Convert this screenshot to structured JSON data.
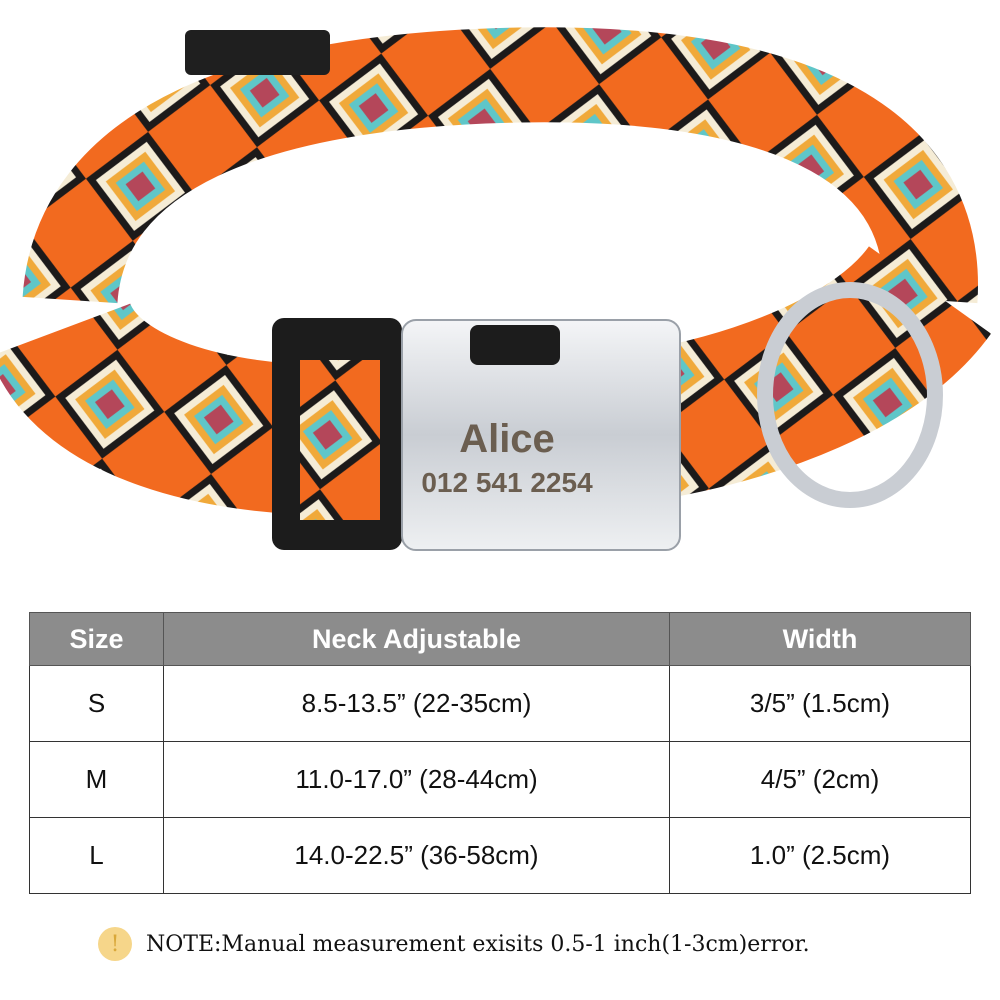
{
  "product": {
    "tag_name": "Alice",
    "tag_phone": "012 541 2254",
    "colors": {
      "orange": "#f26a1f",
      "teal": "#5fc6c8",
      "maroon": "#b4475a",
      "cream": "#f5ecd6",
      "black": "#1c1a1a",
      "gold": "#f0a93a",
      "silver": "#d8dbe0"
    }
  },
  "size_table": {
    "headers": [
      "Size",
      "Neck Adjustable",
      "Width"
    ],
    "rows": [
      [
        "S",
        "8.5-13.5”  (22-35cm)",
        "3/5”  (1.5cm)"
      ],
      [
        "M",
        "11.0-17.0”  (28-44cm)",
        "4/5”  (2cm)"
      ],
      [
        "L",
        "14.0-22.5”  (36-58cm)",
        "1.0”  (2.5cm)"
      ]
    ]
  },
  "note": {
    "icon": "exclamation-icon",
    "text": "NOTE:Manual measurement exisits 0.5-1 inch(1-3cm)error."
  }
}
